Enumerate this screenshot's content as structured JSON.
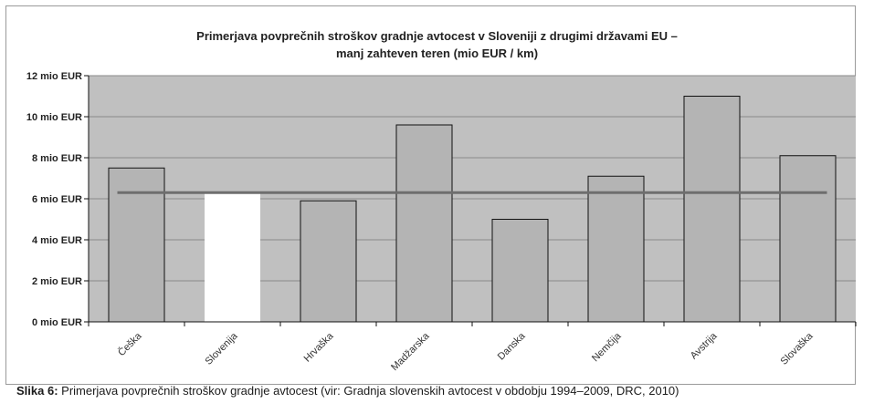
{
  "chart_data": {
    "type": "bar",
    "title_line1": "Primerjava povprečnih stroškov gradnje avtocest v Sloveniji z drugimi državami EU –",
    "title_line2": "manj zahteven teren (mio EUR / km)",
    "categories": [
      "Češka",
      "Slovenija",
      "Hrvaška",
      "Madžarska",
      "Danska",
      "Nemčija",
      "Avstrija",
      "Slovaška"
    ],
    "values": [
      7.5,
      6.3,
      5.9,
      9.6,
      5.0,
      7.1,
      11.0,
      8.1
    ],
    "highlight_category": "Slovenija",
    "reference_line": 6.3,
    "ylim": [
      0,
      12
    ],
    "yticks": [
      0,
      2,
      4,
      6,
      8,
      10,
      12
    ],
    "ytick_labels": [
      "0 mio EUR",
      "2 mio EUR",
      "4 mio EUR",
      "6 mio EUR",
      "8 mio EUR",
      "10 mio EUR",
      "12 mio EUR"
    ],
    "grid": true,
    "colors": {
      "plot_background": "#c0c0c0",
      "bar": "#b4b4b4",
      "bar_highlight": "#ffffff",
      "bar_edge": "#111111",
      "reference_line": "#6e6e6e",
      "grid": "#8a8a8a"
    }
  },
  "caption": {
    "label": "Slika 6:",
    "text": " Primerjava povprečnih stroškov gradnje avtocest (vir: Gradnja slovenskih avtocest v obdobju 1994–2009, DRC, 2010)"
  }
}
